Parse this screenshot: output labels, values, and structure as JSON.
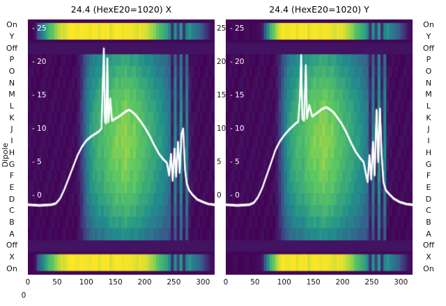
{
  "figure": {
    "dipole_label": "Dipole",
    "corner_tick": "0",
    "row_labels": [
      "On",
      "Y",
      "Off",
      "P",
      "O",
      "N",
      "M",
      "L",
      "K",
      "J",
      "I",
      "H",
      "G",
      "F",
      "E",
      "D",
      "C",
      "B",
      "A",
      "Off",
      "X",
      "On"
    ],
    "background": "#ffffff",
    "text_color": "#111111",
    "line_color": "#ffffff",
    "colormap_colors": [
      "#440154",
      "#3b528b",
      "#21918c",
      "#5ec962",
      "#fde725"
    ]
  },
  "chart_data": [
    {
      "type": "heatmap",
      "title": "24.4 (HexE20=1020) X",
      "x_range": [
        0,
        320
      ],
      "x_ticks": [
        0,
        50,
        100,
        150,
        200,
        250,
        300
      ],
      "value_ticks": [
        25,
        20,
        15,
        10,
        5,
        0
      ],
      "right_side_ticks": [
        25,
        20,
        15,
        10,
        5,
        0
      ],
      "colormap": "viridis",
      "row_modulation": [
        0.78,
        0.85,
        0.92,
        0.98,
        1.02,
        1.05,
        1.07,
        1.08,
        1.07,
        1.05,
        1.02,
        0.98,
        0.92,
        0.85,
        0.76,
        0.65
      ],
      "main_columns": [
        0.03,
        0.03,
        0.03,
        0.03,
        0.03,
        0.03,
        0.03,
        0.03,
        0.03,
        0.03,
        0.03,
        0.03,
        0.03,
        0.03,
        0.03,
        0.03,
        0.03,
        0.08,
        0.18,
        0.3,
        0.42,
        0.5,
        0.55,
        0.58,
        0.62,
        0.6,
        0.65,
        0.68,
        0.7,
        0.72,
        0.75,
        0.73,
        0.76,
        0.78,
        0.75,
        0.72,
        0.74,
        0.7,
        0.68,
        0.65,
        0.62,
        0.6,
        0.58,
        0.55,
        0.52,
        0.5,
        0.46,
        0.42,
        0.38,
        0.1,
        0.45,
        0.12,
        0.48,
        0.1,
        0.4,
        0.08,
        0.04,
        0.03,
        0.03,
        0.03,
        0.03,
        0.03,
        0.03,
        0.03
      ],
      "strip_columns": [
        0.02,
        0.02,
        0.05,
        0.25,
        0.4,
        0.5,
        0.6,
        0.68,
        0.75,
        0.82,
        0.88,
        0.92,
        0.95,
        0.97,
        1.0,
        0.98,
        1.0,
        0.99,
        1.0,
        0.97,
        1.0,
        0.98,
        1.0,
        0.99,
        0.97,
        1.0,
        0.98,
        1.0,
        0.96,
        0.99,
        1.0,
        0.97,
        0.99,
        1.0,
        0.98,
        0.96,
        0.98,
        0.95,
        0.97,
        0.94,
        0.96,
        0.9,
        0.85,
        0.8,
        0.74,
        0.68,
        0.62,
        0.56,
        0.5,
        0.15,
        0.5,
        0.18,
        0.55,
        0.15,
        0.45,
        0.5,
        0.45,
        0.4,
        0.34,
        0.28,
        0.22,
        0.15,
        0.06,
        0.02
      ],
      "profile_line": [
        [
          0,
          -1.4
        ],
        [
          20,
          -1.5
        ],
        [
          40,
          -1.4
        ],
        [
          48,
          -1.2
        ],
        [
          55,
          -0.5
        ],
        [
          62,
          0.8
        ],
        [
          70,
          2.6
        ],
        [
          78,
          4.4
        ],
        [
          85,
          6.0
        ],
        [
          92,
          7.2
        ],
        [
          100,
          8.2
        ],
        [
          108,
          8.8
        ],
        [
          115,
          9.2
        ],
        [
          122,
          9.6
        ],
        [
          126,
          10.0
        ],
        [
          128,
          16.0
        ],
        [
          130,
          22.0
        ],
        [
          132,
          11.0
        ],
        [
          134,
          10.8
        ],
        [
          136,
          20.5
        ],
        [
          138,
          11.0
        ],
        [
          141,
          14.5
        ],
        [
          144,
          11.2
        ],
        [
          150,
          11.5
        ],
        [
          156,
          11.8
        ],
        [
          162,
          12.2
        ],
        [
          168,
          12.6
        ],
        [
          174,
          12.8
        ],
        [
          180,
          12.4
        ],
        [
          186,
          11.9
        ],
        [
          192,
          11.2
        ],
        [
          200,
          10.2
        ],
        [
          208,
          9.0
        ],
        [
          216,
          7.6
        ],
        [
          224,
          6.3
        ],
        [
          232,
          5.4
        ],
        [
          238,
          4.9
        ],
        [
          242,
          3.0
        ],
        [
          245,
          6.2
        ],
        [
          248,
          2.2
        ],
        [
          251,
          7.0
        ],
        [
          254,
          2.8
        ],
        [
          257,
          8.0
        ],
        [
          260,
          3.4
        ],
        [
          263,
          9.2
        ],
        [
          266,
          10.0
        ],
        [
          269,
          4.0
        ],
        [
          272,
          1.8
        ],
        [
          276,
          0.8
        ],
        [
          282,
          0.1
        ],
        [
          290,
          -0.6
        ],
        [
          300,
          -1.0
        ],
        [
          310,
          -1.3
        ],
        [
          320,
          -1.4
        ]
      ]
    },
    {
      "type": "heatmap",
      "title": "24.4 (HexE20=1020) Y",
      "x_range": [
        0,
        320
      ],
      "x_ticks": [
        0,
        50,
        100,
        150,
        200,
        250,
        300
      ],
      "value_ticks": [
        25,
        20,
        15,
        10,
        5,
        0
      ],
      "colormap": "viridis",
      "row_modulation": [
        0.78,
        0.85,
        0.92,
        0.98,
        1.02,
        1.05,
        1.07,
        1.08,
        1.07,
        1.05,
        1.02,
        0.98,
        0.92,
        0.85,
        0.76,
        0.65
      ],
      "main_columns": [
        0.03,
        0.03,
        0.03,
        0.03,
        0.03,
        0.03,
        0.03,
        0.03,
        0.03,
        0.03,
        0.03,
        0.03,
        0.03,
        0.03,
        0.03,
        0.03,
        0.03,
        0.08,
        0.18,
        0.3,
        0.42,
        0.5,
        0.55,
        0.58,
        0.62,
        0.63,
        0.62,
        0.68,
        0.7,
        0.72,
        0.75,
        0.73,
        0.76,
        0.78,
        0.76,
        0.73,
        0.74,
        0.7,
        0.68,
        0.65,
        0.62,
        0.6,
        0.58,
        0.55,
        0.52,
        0.5,
        0.46,
        0.42,
        0.38,
        0.12,
        0.42,
        0.1,
        0.52,
        0.12,
        0.44,
        0.06,
        0.04,
        0.03,
        0.03,
        0.03,
        0.03,
        0.03,
        0.03,
        0.03
      ],
      "strip_columns": [
        0.02,
        0.02,
        0.02,
        0.02,
        0.02,
        0.02,
        0.02,
        0.02,
        0.02,
        0.02,
        0.02,
        0.02,
        0.1,
        0.3,
        0.5,
        0.65,
        0.78,
        0.88,
        0.95,
        1.0,
        1.0,
        0.98,
        1.0,
        0.99,
        0.97,
        1.0,
        0.98,
        1.0,
        0.96,
        0.99,
        1.0,
        0.97,
        0.99,
        1.0,
        0.98,
        0.96,
        0.98,
        0.95,
        0.97,
        0.94,
        0.96,
        0.9,
        0.85,
        0.8,
        0.74,
        0.68,
        0.62,
        0.56,
        0.5,
        0.15,
        0.5,
        0.18,
        0.55,
        0.15,
        0.45,
        0.5,
        0.45,
        0.4,
        0.34,
        0.28,
        0.22,
        0.15,
        0.06,
        0.02
      ],
      "profile_line": [
        [
          0,
          -1.4
        ],
        [
          20,
          -1.5
        ],
        [
          40,
          -1.4
        ],
        [
          48,
          -1.1
        ],
        [
          55,
          -0.3
        ],
        [
          62,
          1.0
        ],
        [
          70,
          3.0
        ],
        [
          78,
          5.0
        ],
        [
          85,
          6.8
        ],
        [
          92,
          8.0
        ],
        [
          100,
          9.0
        ],
        [
          108,
          9.8
        ],
        [
          114,
          10.3
        ],
        [
          120,
          10.8
        ],
        [
          124,
          11.0
        ],
        [
          127,
          15.0
        ],
        [
          129,
          21.0
        ],
        [
          131,
          11.5
        ],
        [
          134,
          11.2
        ],
        [
          137,
          19.5
        ],
        [
          139,
          11.5
        ],
        [
          143,
          13.5
        ],
        [
          148,
          11.8
        ],
        [
          154,
          12.2
        ],
        [
          160,
          12.6
        ],
        [
          166,
          13.0
        ],
        [
          172,
          13.2
        ],
        [
          178,
          12.9
        ],
        [
          184,
          12.5
        ],
        [
          190,
          11.8
        ],
        [
          198,
          10.8
        ],
        [
          206,
          9.5
        ],
        [
          214,
          8.0
        ],
        [
          222,
          6.6
        ],
        [
          230,
          5.6
        ],
        [
          236,
          5.0
        ],
        [
          240,
          3.2
        ],
        [
          243,
          2.0
        ],
        [
          246,
          6.0
        ],
        [
          249,
          2.4
        ],
        [
          252,
          8.0
        ],
        [
          255,
          3.0
        ],
        [
          258,
          12.8
        ],
        [
          261,
          5.0
        ],
        [
          264,
          13.0
        ],
        [
          267,
          6.0
        ],
        [
          270,
          2.0
        ],
        [
          274,
          0.8
        ],
        [
          280,
          0.2
        ],
        [
          288,
          -0.5
        ],
        [
          298,
          -1.0
        ],
        [
          310,
          -1.3
        ],
        [
          320,
          -1.4
        ]
      ]
    }
  ]
}
